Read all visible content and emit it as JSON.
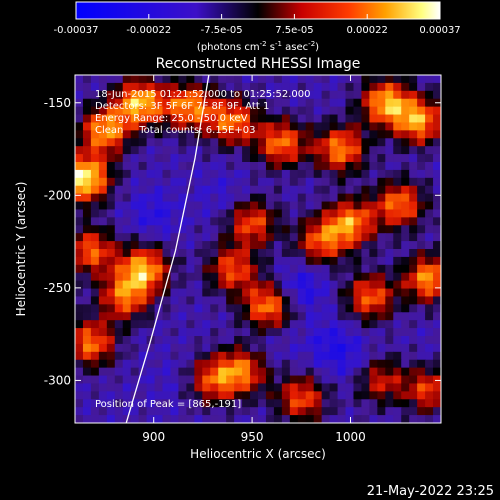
{
  "colorbar": {
    "ticks": [
      "-0.00037",
      "-0.00022",
      "-7.5e-05",
      "7.5e-05",
      "0.00022",
      "0.00037"
    ],
    "units": "(photons cm",
    "units_exp1": "-2",
    "units_mid": " s",
    "units_exp2": "-1",
    "units_end": " asec",
    "units_exp3": "-2",
    "units_close": ")"
  },
  "chart_data": {
    "type": "heatmap",
    "title": "Reconstructed RHESSI Image",
    "xlabel": "Heliocentric X (arcsec)",
    "ylabel": "Heliocentric Y (arcsec)",
    "xlim": [
      860,
      1046
    ],
    "ylim": [
      -323,
      -135
    ],
    "xticks": [
      900,
      950,
      1000
    ],
    "yticks": [
      -150,
      -200,
      -250,
      -300
    ],
    "zlim": [
      -0.00037,
      0.00037
    ],
    "colormap": "RHESSI blue-purple-red-yellow-white",
    "limb": [
      [
        928,
        -135
      ],
      [
        921,
        -180
      ],
      [
        911,
        -230
      ],
      [
        898,
        -280
      ],
      [
        886,
        -323
      ]
    ],
    "hotspots": [
      {
        "x": 865,
        "y": -191,
        "v": 0.00037
      },
      {
        "x": 893,
        "y": -150,
        "v": 0.0003
      },
      {
        "x": 875,
        "y": -165,
        "v": 0.00026
      },
      {
        "x": 918,
        "y": -152,
        "v": 0.00024
      },
      {
        "x": 940,
        "y": -160,
        "v": 0.00022
      },
      {
        "x": 965,
        "y": -172,
        "v": 0.00022
      },
      {
        "x": 995,
        "y": -175,
        "v": 0.00024
      },
      {
        "x": 1018,
        "y": -150,
        "v": 0.00028
      },
      {
        "x": 1035,
        "y": -160,
        "v": 0.00026
      },
      {
        "x": 1000,
        "y": -215,
        "v": 0.00024
      },
      {
        "x": 1025,
        "y": -205,
        "v": 0.00022
      },
      {
        "x": 1040,
        "y": -245,
        "v": 0.00026
      },
      {
        "x": 1010,
        "y": -255,
        "v": 0.0002
      },
      {
        "x": 985,
        "y": -225,
        "v": 0.00018
      },
      {
        "x": 895,
        "y": -240,
        "v": 0.00028
      },
      {
        "x": 885,
        "y": -255,
        "v": 0.0002
      },
      {
        "x": 868,
        "y": -230,
        "v": 0.0002
      },
      {
        "x": 868,
        "y": -280,
        "v": 0.00022
      },
      {
        "x": 950,
        "y": -215,
        "v": 0.00018
      },
      {
        "x": 958,
        "y": -260,
        "v": 0.00024
      },
      {
        "x": 940,
        "y": -240,
        "v": 0.00018
      },
      {
        "x": 945,
        "y": -295,
        "v": 0.0002
      },
      {
        "x": 930,
        "y": -300,
        "v": 0.00016
      },
      {
        "x": 975,
        "y": -310,
        "v": 0.00018
      },
      {
        "x": 1040,
        "y": -305,
        "v": 0.00016
      },
      {
        "x": 1015,
        "y": -300,
        "v": 0.00012
      }
    ],
    "coldspots": [
      {
        "x": 900,
        "y": -210,
        "v": -0.00022
      },
      {
        "x": 935,
        "y": -200,
        "v": -0.00018
      },
      {
        "x": 975,
        "y": -250,
        "v": -0.00026
      },
      {
        "x": 990,
        "y": -280,
        "v": -0.00022
      },
      {
        "x": 1000,
        "y": -290,
        "v": -0.0002
      },
      {
        "x": 960,
        "y": -280,
        "v": -0.00016
      },
      {
        "x": 910,
        "y": -300,
        "v": -0.00016
      },
      {
        "x": 1045,
        "y": -285,
        "v": -0.00014
      },
      {
        "x": 880,
        "y": -310,
        "v": -0.00012
      }
    ]
  },
  "info": {
    "line1": "18-Jun-2015 01:21:52.000 to 01:25:52.000",
    "line2": "Detectors: 3F 5F 6F 7F 8F 9F, Att 1",
    "line3": "Energy Range: 25.0 - 50.0 keV",
    "line4": "Clean     Total counts: 6.15E+03",
    "peak": "Position of Peak = [865,-191]"
  },
  "footer": {
    "date": "21-May-2022 23:25"
  }
}
